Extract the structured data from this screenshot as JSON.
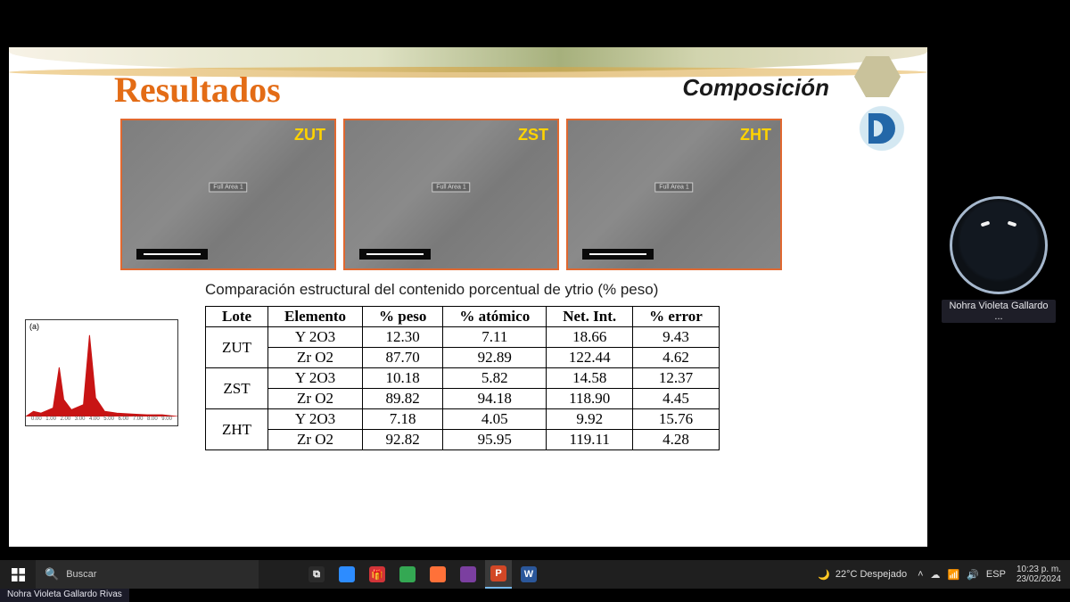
{
  "slide": {
    "title_left": "Resultados",
    "title_left_color": "#e36c16",
    "title_right": "Composición",
    "sem_labels": {
      "a": "ZUT",
      "b": "ZST",
      "c": "ZHT"
    },
    "sem_label_color": "#ffd300",
    "sem_border_color": "#e06830",
    "sem_tag": "Full Area 1",
    "caption": "Comparación estructural del contenido porcentual de ytrio (% peso)",
    "spectrum_corner": "(a)"
  },
  "table": {
    "headers": [
      "Lote",
      "Elemento",
      "% peso",
      "% atómico",
      "Net. Int.",
      "% error"
    ],
    "groups": [
      {
        "lote": "ZUT",
        "rows": [
          {
            "elemento": "Y 2O3",
            "peso": "12.30",
            "atomico": "7.11",
            "netint": "18.66",
            "error": "9.43"
          },
          {
            "elemento": "Zr O2",
            "peso": "87.70",
            "atomico": "92.89",
            "netint": "122.44",
            "error": "4.62"
          }
        ]
      },
      {
        "lote": "ZST",
        "rows": [
          {
            "elemento": "Y 2O3",
            "peso": "10.18",
            "atomico": "5.82",
            "netint": "14.58",
            "error": "12.37"
          },
          {
            "elemento": "Zr O2",
            "peso": "89.82",
            "atomico": "94.18",
            "netint": "118.90",
            "error": "4.45"
          }
        ]
      },
      {
        "lote": "ZHT",
        "rows": [
          {
            "elemento": "Y 2O3",
            "peso": "7.18",
            "atomico": "4.05",
            "netint": "9.92",
            "error": "15.76"
          },
          {
            "elemento": "Zr O2",
            "peso": "92.82",
            "atomico": "95.95",
            "netint": "119.11",
            "error": "4.28"
          }
        ]
      }
    ]
  },
  "spectrum": {
    "color": "#c81414",
    "axis_ticks": [
      "0.00",
      "1.00",
      "2.00",
      "3.00",
      "4.00",
      "5.00",
      "6.00",
      "7.00",
      "8.00",
      "9.00"
    ],
    "points": [
      [
        0.0,
        0
      ],
      [
        0.05,
        6
      ],
      [
        0.1,
        4
      ],
      [
        0.18,
        10
      ],
      [
        0.22,
        58
      ],
      [
        0.25,
        20
      ],
      [
        0.3,
        8
      ],
      [
        0.38,
        14
      ],
      [
        0.42,
        96
      ],
      [
        0.46,
        22
      ],
      [
        0.52,
        6
      ],
      [
        0.6,
        4
      ],
      [
        0.7,
        3
      ],
      [
        0.8,
        2
      ],
      [
        0.9,
        2
      ],
      [
        1.0,
        0
      ]
    ]
  },
  "presenter": {
    "name": "Nohra Violeta Gallardo ..."
  },
  "taskbar": {
    "search_placeholder": "Buscar",
    "weather": "22°C Despejado",
    "lang": "ESP",
    "time": "10:23 p. m.",
    "date": "23/02/2024",
    "apps": [
      {
        "name": "task-view",
        "bg": "#2b2b2b",
        "glyph": "⧉"
      },
      {
        "name": "zoom",
        "bg": "#2d8cff",
        "glyph": ""
      },
      {
        "name": "gift",
        "bg": "#d13438",
        "glyph": "🎁"
      },
      {
        "name": "edge",
        "bg": "#34a853",
        "glyph": ""
      },
      {
        "name": "firefox",
        "bg": "#ff7139",
        "glyph": ""
      },
      {
        "name": "app1",
        "bg": "#7b3fa0",
        "glyph": ""
      },
      {
        "name": "powerpoint",
        "bg": "#d24726",
        "glyph": "P"
      },
      {
        "name": "word",
        "bg": "#2b579a",
        "glyph": "W"
      }
    ]
  },
  "caption_bar": "Nohra Violeta Gallardo Rivas"
}
